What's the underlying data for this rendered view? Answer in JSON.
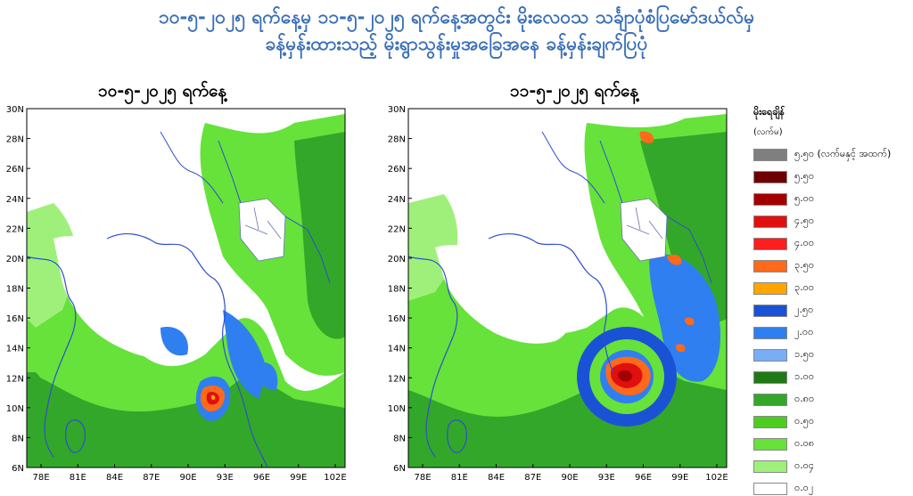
{
  "header": {
    "line1": "၁၀-၅-၂၀၂၅ ရက်နေ့မှ ၁၁-၅-၂၀၂၅ ရက်နေ့အတွင်း မိုးလေဝသ သင်္ချာပုံစံပြမော်ဒယ်လ်မှ",
    "line2": "ခန့်မှန်းထားသည့် မိုးရွာသွန်းမှုအခြေအနေ ခန့်မှန်းချက်ပြပုံ"
  },
  "maps": [
    {
      "title": "၁၀-၅-၂၀၂၅ ရက်နေ့"
    },
    {
      "title": "၁၁-၅-၂၀၂၅ ရက်နေ့"
    }
  ],
  "axes": {
    "lat_labels": [
      "30N",
      "28N",
      "26N",
      "24N",
      "22N",
      "20N",
      "18N",
      "16N",
      "14N",
      "12N",
      "10N",
      "8N",
      "6N"
    ],
    "lon_labels": [
      "78E",
      "81E",
      "84E",
      "87E",
      "90E",
      "93E",
      "96E",
      "99E",
      "102E"
    ]
  },
  "legend": {
    "title": "မိုးရေချိန်",
    "unit": "(လက်မ)",
    "items": [
      {
        "label": "၅.၅၀ (လက်မနှင့် အထက်)",
        "color": "#7f7f7f"
      },
      {
        "label": "၅.၅၀",
        "color": "#6e0000"
      },
      {
        "label": "၅.၀၀",
        "color": "#a30000"
      },
      {
        "label": "၄.၅၀",
        "color": "#e01010"
      },
      {
        "label": "၄.၀၀",
        "color": "#ff1e1e"
      },
      {
        "label": "၃.၅၀",
        "color": "#ff6a1a"
      },
      {
        "label": "၃.၀၀",
        "color": "#ffa500"
      },
      {
        "label": "၂.၅၀",
        "color": "#1a52d6"
      },
      {
        "label": "၂.၀၀",
        "color": "#2f7ff0"
      },
      {
        "label": "၁.၅၀",
        "color": "#79aef7"
      },
      {
        "label": "၁.၀၀",
        "color": "#1e7a14"
      },
      {
        "label": "၀.၈၀",
        "color": "#33a72a"
      },
      {
        "label": "၀.၅၀",
        "color": "#4dcc22"
      },
      {
        "label": "၀.၀၈",
        "color": "#66e23b"
      },
      {
        "label": "၀.၀၄",
        "color": "#9ff07a"
      },
      {
        "label": "၀.၀၂",
        "color": "#ffffff"
      }
    ]
  }
}
